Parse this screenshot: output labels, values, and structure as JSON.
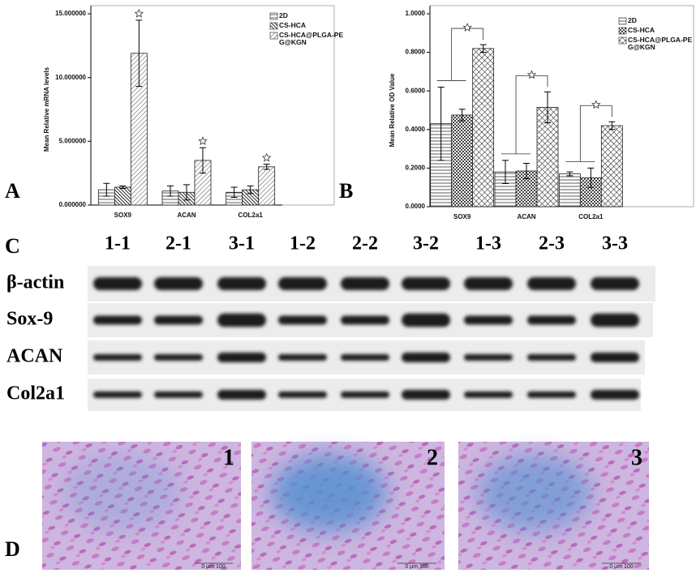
{
  "chart_data": [
    {
      "type": "bar",
      "ylabel": "Mean Relative mRNA levels",
      "categories": [
        "SOX9",
        "ACAN",
        "COL2a1"
      ],
      "series": [
        {
          "name": "2D",
          "pattern": "hlines",
          "values": [
            1.2,
            1.1,
            1.0
          ],
          "errors": [
            0.5,
            0.4,
            0.4
          ]
        },
        {
          "name": "CS-HCA",
          "pattern": "ddiag",
          "values": [
            1.4,
            1.0,
            1.2
          ],
          "errors": [
            0.1,
            0.6,
            0.3
          ]
        },
        {
          "name": "CS-HCA@PLGA-PEG@KGN",
          "pattern": "diag",
          "values": [
            11.9,
            3.5,
            3.0
          ],
          "errors": [
            2.6,
            1.0,
            0.2
          ]
        }
      ],
      "ylim": [
        0,
        15
      ],
      "yticks": [
        {
          "value": 0,
          "label": "0.000000"
        },
        {
          "value": 5,
          "label": "5.000000"
        },
        {
          "value": 10,
          "label": "10.000000"
        },
        {
          "value": 15,
          "label": "15.000000"
        }
      ]
    },
    {
      "type": "bar",
      "ylabel": "Mean Relative OD Value",
      "categories": [
        "SOX9",
        "ACAN",
        "COL2a1"
      ],
      "series": [
        {
          "name": "2D",
          "pattern": "hlines",
          "values": [
            0.43,
            0.18,
            0.17
          ],
          "errors": [
            0.19,
            0.06,
            0.01
          ]
        },
        {
          "name": "CS-HCA",
          "pattern": "dots",
          "values": [
            0.475,
            0.185,
            0.15
          ],
          "errors": [
            0.03,
            0.04,
            0.05
          ]
        },
        {
          "name": "CS-HCA@PLGA-PEG@KGN",
          "pattern": "cross",
          "values": [
            0.82,
            0.515,
            0.42
          ],
          "errors": [
            0.02,
            0.08,
            0.02
          ]
        }
      ],
      "ylim": [
        0,
        1
      ],
      "yticks": [
        {
          "value": 0,
          "label": "0.0000"
        },
        {
          "value": 0.2,
          "label": "0.2000"
        },
        {
          "value": 0.4,
          "label": "0.4000"
        },
        {
          "value": 0.6,
          "label": "0.6000"
        },
        {
          "value": 0.8,
          "label": "0.8000"
        },
        {
          "value": 1,
          "label": "1.0000"
        }
      ]
    }
  ],
  "panel_labels": [
    "A",
    "B",
    "C",
    "D"
  ],
  "blot": {
    "lanes": [
      "1-1",
      "2-1",
      "3-1",
      "1-2",
      "2-2",
      "3-2",
      "1-3",
      "2-3",
      "3-3"
    ],
    "rows": [
      "β-actin",
      "Sox-9",
      "ACAN",
      "Col2a1"
    ]
  },
  "micrographs": [
    {
      "label": "1",
      "scale": "0 μm 100"
    },
    {
      "label": "2",
      "scale": "0 μm 100"
    },
    {
      "label": "3",
      "scale": "0 μm 100"
    }
  ]
}
